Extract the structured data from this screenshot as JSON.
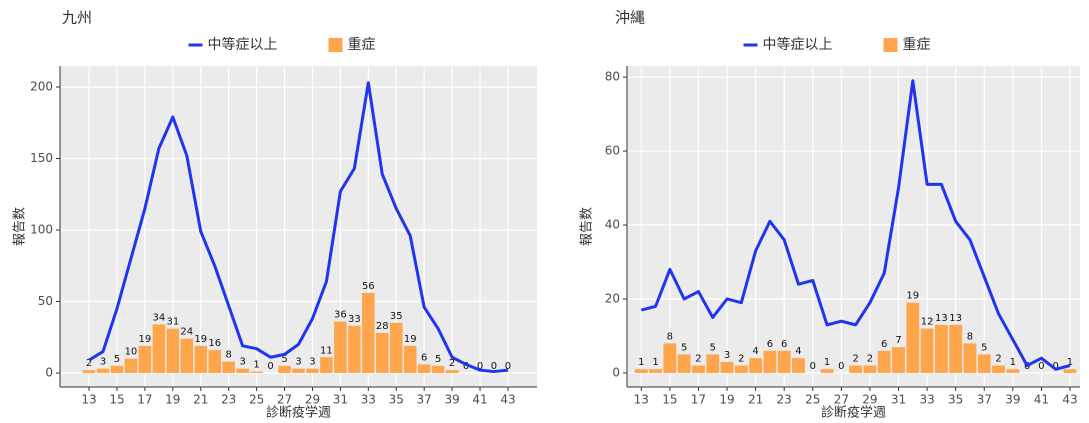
{
  "chart_data": [
    {
      "type": "bar",
      "title": "九州",
      "x_label": "診断疫学週",
      "y_label": "報告数",
      "x": [
        13,
        14,
        15,
        16,
        17,
        18,
        19,
        20,
        21,
        22,
        23,
        24,
        25,
        26,
        27,
        28,
        29,
        30,
        31,
        32,
        33,
        34,
        35,
        36,
        37,
        38,
        39,
        40,
        41,
        42,
        43
      ],
      "series": [
        {
          "name": "中等症以上",
          "type": "line",
          "color": "#1f35f0",
          "values": [
            9,
            15,
            45,
            80,
            115,
            157,
            179,
            152,
            99,
            75,
            47,
            19,
            17,
            11,
            13,
            20,
            38,
            64,
            127,
            143,
            203,
            139,
            115,
            96,
            46,
            31,
            11,
            6,
            2,
            1,
            2
          ]
        },
        {
          "name": "重症",
          "type": "bar",
          "color": "#ffa64d",
          "values": [
            2,
            3,
            5,
            10,
            19,
            34,
            31,
            24,
            19,
            16,
            8,
            3,
            1,
            0,
            5,
            3,
            3,
            11,
            36,
            33,
            56,
            28,
            35,
            19,
            6,
            5,
            2,
            0,
            0,
            0,
            0
          ]
        }
      ],
      "xlim": [
        10.92,
        45.08
      ],
      "xticks": [
        13,
        15,
        17,
        19,
        21,
        23,
        25,
        27,
        29,
        31,
        33,
        35,
        37,
        39,
        41,
        43
      ],
      "ylim": [
        -9.8,
        214.7
      ],
      "yticks": [
        0,
        50,
        100,
        150,
        200
      ],
      "grid": true
    },
    {
      "type": "bar",
      "title": "沖縄",
      "x_label": "診断疫学週",
      "y_label": "報告数",
      "x": [
        13,
        14,
        15,
        16,
        17,
        18,
        19,
        20,
        21,
        22,
        23,
        24,
        25,
        26,
        27,
        28,
        29,
        30,
        31,
        32,
        33,
        34,
        35,
        36,
        37,
        38,
        39,
        40,
        41,
        42,
        43
      ],
      "series": [
        {
          "name": "中等症以上",
          "type": "line",
          "color": "#1f35f0",
          "values": [
            17,
            18,
            28,
            20,
            22,
            15,
            20,
            19,
            33,
            41,
            36,
            24,
            25,
            13,
            14,
            13,
            19,
            27,
            50,
            79,
            51,
            51,
            41,
            36,
            26,
            16,
            9,
            2,
            4,
            1,
            2
          ]
        },
        {
          "name": "重症",
          "type": "bar",
          "color": "#ffa64d",
          "values": [
            1,
            1,
            8,
            5,
            2,
            5,
            3,
            2,
            4,
            6,
            6,
            4,
            0,
            1,
            0,
            2,
            2,
            6,
            7,
            19,
            12,
            13,
            13,
            8,
            5,
            2,
            1,
            0,
            0,
            0,
            1
          ]
        }
      ],
      "xlim": [
        12.0,
        43.7
      ],
      "xticks": [
        13,
        15,
        17,
        19,
        21,
        23,
        25,
        27,
        29,
        31,
        33,
        35,
        37,
        39,
        41,
        43
      ],
      "ylim": [
        -3.8,
        83
      ],
      "yticks": [
        0,
        20,
        40,
        60,
        80
      ],
      "grid": true
    }
  ]
}
